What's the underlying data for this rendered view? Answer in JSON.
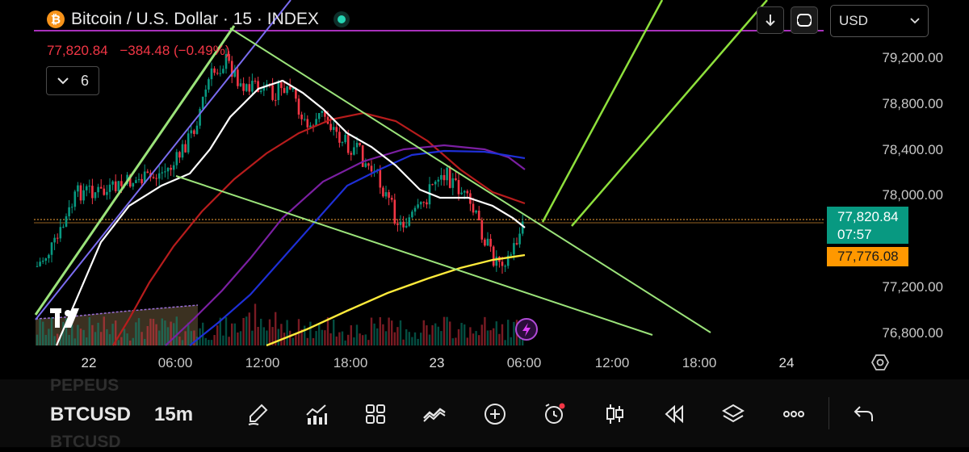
{
  "header": {
    "logo_glyph": "₿",
    "title": "Bitcoin / U.S. Dollar · 15 · INDEX",
    "close": "77,820.84",
    "change": "−384.48 (−0.49%)",
    "indicator_count": "6"
  },
  "toolbar_top": {
    "currency": "USD"
  },
  "price_axis": {
    "ticks": [
      "79,200.00",
      "78,800.00",
      "78,400.00",
      "78,000.00",
      "77,200.00",
      "76,800.00"
    ],
    "last_price": "77,820.84",
    "countdown": "07:57",
    "ma_price": "77,776.08"
  },
  "time_axis": {
    "ticks": [
      "22",
      "06:00",
      "12:00",
      "18:00",
      "23",
      "06:00",
      "12:00",
      "18:00",
      "24"
    ]
  },
  "bottom": {
    "symbol": "BTCUSD",
    "timeframe": "15m",
    "ghost_above": "PEPEUS",
    "ghost_below": "BTCUSD",
    "tools": [
      "brush-icon",
      "indicators-icon",
      "layout-icon",
      "drawings-icon",
      "add-icon",
      "alert-icon",
      "candles-icon",
      "replay-icon",
      "layers-icon",
      "more-icon",
      "undo-icon"
    ]
  },
  "colors": {
    "up": "#089981",
    "down": "#f23645",
    "ma_white": "#ffffff",
    "ma_red": "#b71c1c",
    "ma_purple": "#7b1fa2",
    "ma_blue": "#1e2fd6",
    "ma_yellow": "#ffeb3b",
    "trend_green": "#9be37a",
    "trend_lime": "#8ee03c",
    "accent": "#e040fb"
  }
}
